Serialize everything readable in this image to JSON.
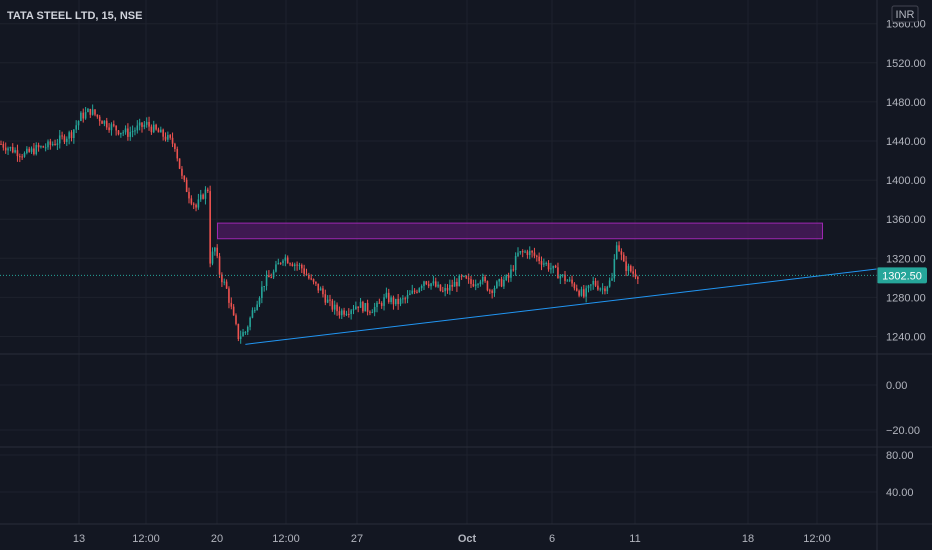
{
  "header": {
    "title": "TATA STEEL LTD, 15, NSE",
    "currency_badge": "INR"
  },
  "colors": {
    "background": "#131722",
    "grid": "#1e222d",
    "up": "#26a69a",
    "down": "#ef5350",
    "zone_fill": "#4a1a5e",
    "zone_border": "#9c27b0",
    "trendline": "#2196f3",
    "price_label_bg": "#26a69a",
    "text": "#b2b5be"
  },
  "chart_data": {
    "type": "candlestick",
    "symbol": "TATA STEEL LTD",
    "interval": "15",
    "exchange": "NSE",
    "current_price": "1302.50",
    "price_axis": {
      "ticks": [
        "1560.00",
        "1520.00",
        "1480.00",
        "1440.00",
        "1400.00",
        "1360.00",
        "1320.00",
        "1280.00",
        "1240.00"
      ],
      "ylim": [
        1220,
        1570
      ]
    },
    "indicator1": {
      "ticks": [
        "0.00",
        "−20.00"
      ]
    },
    "indicator2": {
      "ticks": [
        "80.00",
        "40.00"
      ]
    },
    "x_ticks": [
      "13",
      "12:00",
      "20",
      "12:00",
      "27",
      "Oct",
      "6",
      "11",
      "18",
      "12:00"
    ],
    "price_path": [
      [
        0,
        1437
      ],
      [
        0.5,
        1431
      ],
      [
        1,
        1426
      ],
      [
        1.5,
        1432
      ],
      [
        2,
        1435
      ],
      [
        2.5,
        1441
      ],
      [
        3,
        1448
      ],
      [
        3.4,
        1465
      ],
      [
        3.8,
        1471
      ],
      [
        4.2,
        1463
      ],
      [
        4.6,
        1456
      ],
      [
        5.0,
        1451
      ],
      [
        5.4,
        1448
      ],
      [
        5.8,
        1453
      ],
      [
        6.2,
        1457
      ],
      [
        6.6,
        1450
      ],
      [
        7.0,
        1444
      ],
      [
        7.4,
        1436
      ],
      [
        7.7,
        1402
      ],
      [
        8.0,
        1385
      ],
      [
        8.3,
        1372
      ],
      [
        8.6,
        1385
      ],
      [
        8.8,
        1391
      ],
      [
        8.9,
        1318
      ],
      [
        9.1,
        1330
      ],
      [
        9.3,
        1305
      ],
      [
        9.6,
        1288
      ],
      [
        9.9,
        1258
      ],
      [
        10.1,
        1240
      ],
      [
        10.4,
        1245
      ],
      [
        10.8,
        1272
      ],
      [
        11.2,
        1295
      ],
      [
        11.6,
        1305
      ],
      [
        12.0,
        1322
      ],
      [
        12.4,
        1316
      ],
      [
        12.8,
        1310
      ],
      [
        13.2,
        1296
      ],
      [
        13.6,
        1287
      ],
      [
        14.0,
        1272
      ],
      [
        14.4,
        1265
      ],
      [
        14.8,
        1268
      ],
      [
        15.2,
        1273
      ],
      [
        15.6,
        1268
      ],
      [
        16.0,
        1270
      ],
      [
        16.4,
        1280
      ],
      [
        16.8,
        1274
      ],
      [
        17.2,
        1278
      ],
      [
        17.6,
        1286
      ],
      [
        18.0,
        1298
      ],
      [
        18.4,
        1293
      ],
      [
        18.8,
        1285
      ],
      [
        19.2,
        1292
      ],
      [
        19.6,
        1299
      ],
      [
        20.0,
        1294
      ],
      [
        20.4,
        1300
      ],
      [
        20.8,
        1288
      ],
      [
        21.2,
        1294
      ],
      [
        21.6,
        1300
      ],
      [
        22.0,
        1324
      ],
      [
        22.4,
        1327
      ],
      [
        22.8,
        1321
      ],
      [
        23.2,
        1314
      ],
      [
        23.6,
        1306
      ],
      [
        24.0,
        1299
      ],
      [
        24.4,
        1292
      ],
      [
        24.8,
        1281
      ],
      [
        25.2,
        1295
      ],
      [
        25.6,
        1289
      ],
      [
        26.0,
        1298
      ],
      [
        26.2,
        1338
      ],
      [
        26.5,
        1313
      ],
      [
        26.9,
        1305
      ],
      [
        27.2,
        1303
      ]
    ],
    "annotations": {
      "resistance_zone": {
        "from_t": 9.0,
        "to_t": 35.0,
        "price_low": 1340,
        "price_high": 1356
      },
      "trendline": {
        "t1": 10.1,
        "p1": 1232,
        "t2": 37.3,
        "p2": 1309
      }
    }
  }
}
